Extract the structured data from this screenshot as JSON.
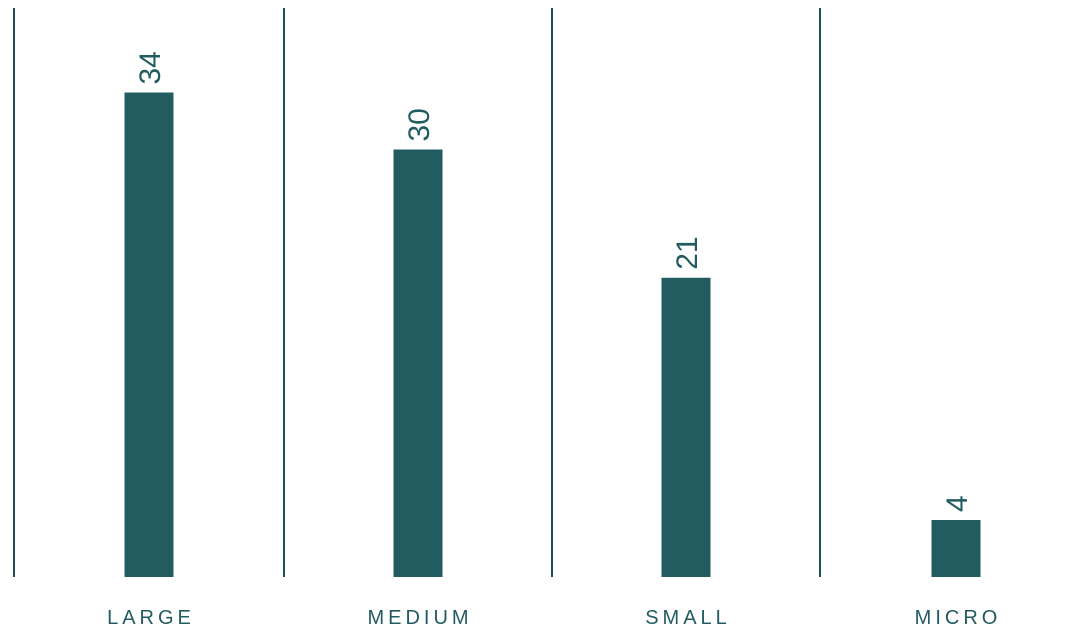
{
  "chart_data": {
    "type": "bar",
    "title": "",
    "xlabel": "",
    "ylabel": "",
    "categories": [
      "LARGE",
      "MEDIUM",
      "SMALL",
      "MICRO"
    ],
    "values": [
      34,
      30,
      21,
      4
    ],
    "value_labels": [
      "34",
      "30",
      "21",
      "4"
    ],
    "ylim": [
      0,
      38
    ],
    "grid": false,
    "legend": "none",
    "colors": {
      "bar": "#235c60",
      "value_label": "#235c60",
      "category_label": "#235c60",
      "separator": "#1f4f52"
    }
  }
}
